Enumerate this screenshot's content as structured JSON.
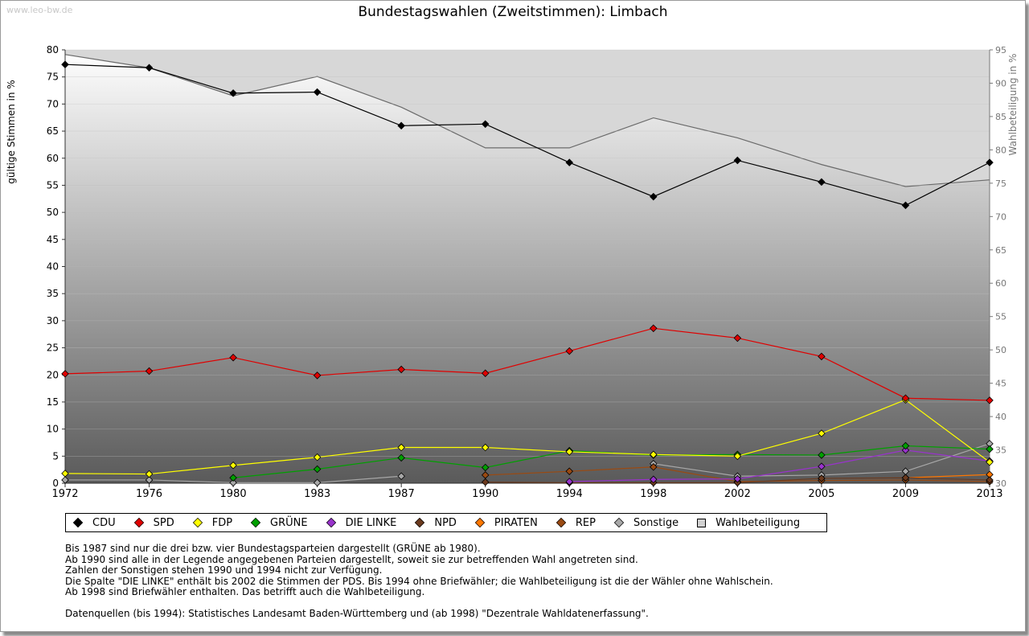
{
  "watermark": "www.leo-bw.de",
  "chart_data": {
    "type": "line",
    "title": "Bundestagswahlen (Zweitstimmen): Limbach",
    "ylabel": "gültige Stimmen in %",
    "y2label": "Wahlbeteiligung in %",
    "ylim": [
      0,
      80
    ],
    "y2lim": [
      30,
      95
    ],
    "y_ticks": [
      "0",
      "5",
      "10",
      "15",
      "20",
      "25",
      "30",
      "35",
      "40",
      "45",
      "50",
      "55",
      "60",
      "65",
      "70",
      "75",
      "80"
    ],
    "y2_ticks": [
      "30",
      "35",
      "40",
      "45",
      "50",
      "55",
      "60",
      "65",
      "70",
      "75",
      "80",
      "85",
      "90",
      "95"
    ],
    "categories": [
      "1972",
      "1976",
      "1980",
      "1983",
      "1987",
      "1990",
      "1994",
      "1998",
      "2002",
      "2005",
      "2009",
      "2013"
    ],
    "series": [
      {
        "name": "CDU",
        "color": "#000000",
        "values": [
          77.3,
          76.7,
          72.0,
          72.2,
          66.0,
          66.3,
          59.2,
          52.9,
          59.6,
          55.6,
          51.3,
          59.2
        ]
      },
      {
        "name": "SPD",
        "color": "#e00000",
        "values": [
          20.2,
          20.7,
          23.2,
          19.9,
          21.0,
          20.3,
          24.4,
          28.6,
          26.8,
          23.4,
          15.7,
          15.3
        ]
      },
      {
        "name": "FDP",
        "color": "#ffff00",
        "values": [
          1.8,
          1.7,
          3.3,
          4.8,
          6.6,
          6.6,
          5.8,
          5.3,
          5.0,
          9.2,
          15.4,
          3.9
        ]
      },
      {
        "name": "GRÜNE",
        "color": "#00a000",
        "values": [
          null,
          null,
          1.0,
          2.6,
          4.7,
          2.9,
          6.0,
          5.2,
          5.3,
          5.2,
          6.9,
          6.3
        ]
      },
      {
        "name": "DIE LINKE",
        "color": "#9933cc",
        "values": [
          null,
          null,
          null,
          null,
          null,
          null,
          0.3,
          0.7,
          0.8,
          3.1,
          6.1,
          4.1
        ]
      },
      {
        "name": "NPD",
        "color": "#6b3a1e",
        "values": [
          null,
          null,
          null,
          null,
          null,
          0.2,
          0.1,
          0.1,
          0.1,
          0.9,
          1.0,
          0.6
        ]
      },
      {
        "name": "PIRATEN",
        "color": "#ff7700",
        "values": [
          null,
          null,
          null,
          null,
          null,
          null,
          null,
          null,
          null,
          null,
          1.0,
          1.6
        ]
      },
      {
        "name": "REP",
        "color": "#9a4a12",
        "values": [
          null,
          null,
          null,
          null,
          null,
          1.5,
          2.2,
          3.0,
          0.3,
          0.5,
          0.6,
          0.3
        ]
      },
      {
        "name": "Sonstige",
        "color": "#a8a8a8",
        "values": [
          0.6,
          0.6,
          0.1,
          0.1,
          1.3,
          null,
          null,
          3.6,
          1.3,
          1.5,
          2.2,
          7.3
        ]
      }
    ],
    "turnout": {
      "name": "Wahlbeteiligung",
      "color": "#d0d0d0",
      "values": [
        94.3,
        92.3,
        88.1,
        91.0,
        86.4,
        80.3,
        80.3,
        84.8,
        81.8,
        77.8,
        74.5,
        75.5
      ]
    },
    "legend_position": "bottom",
    "grid": true
  },
  "notes": [
    "Bis 1987 sind nur die drei bzw. vier Bundestagsparteien dargestellt (GRÜNE ab 1980).",
    "Ab 1990 sind alle in der Legende angegebenen Parteien dargestellt, soweit sie zur betreffenden Wahl angetreten sind.",
    "Zahlen der Sonstigen stehen 1990 und 1994 nicht zur Verfügung.",
    "Die Spalte \"DIE LINKE\" enthält bis 2002 die Stimmen der PDS. Bis 1994 ohne Briefwähler; die Wahlbeteiligung ist die der Wähler ohne Wahlschein.",
    "Ab 1998 sind Briefwähler enthalten. Das betrifft auch die Wahlbeteiligung."
  ],
  "source": "Datenquellen (bis 1994): Statistisches Landesamt Baden-Württemberg und (ab 1998) \"Dezentrale Wahldatenerfassung\"."
}
